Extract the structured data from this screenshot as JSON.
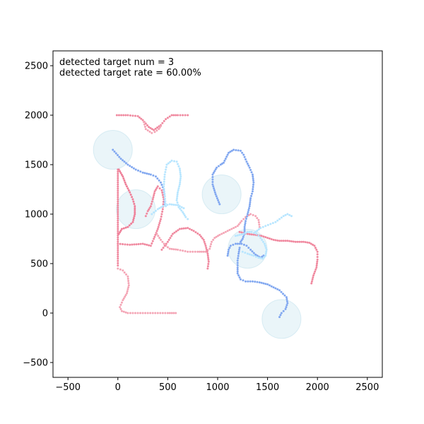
{
  "chart_data": {
    "type": "scatter",
    "title": "",
    "xlabel": "",
    "ylabel": "",
    "xlim": [
      -650,
      2650
    ],
    "ylim": [
      -650,
      2650
    ],
    "xticks": [
      -500,
      0,
      500,
      1000,
      1500,
      2000,
      2500
    ],
    "yticks": [
      -500,
      0,
      500,
      1000,
      1500,
      2000,
      2500
    ],
    "xtick_labels": [
      "−500",
      "0",
      "500",
      "1000",
      "1500",
      "2000",
      "2500"
    ],
    "ytick_labels": [
      "−500",
      "0",
      "500",
      "1000",
      "1500",
      "2000",
      "2500"
    ],
    "grid": false,
    "legend": "none",
    "annotations": [
      "detected target num = 3",
      "detected target rate = 60.00%"
    ],
    "targets": [
      {
        "x": -50,
        "y": 1650,
        "r": 195
      },
      {
        "x": 180,
        "y": 1050,
        "r": 195
      },
      {
        "x": 1040,
        "y": 1200,
        "r": 195
      },
      {
        "x": 1300,
        "y": 650,
        "r": 195
      },
      {
        "x": 1640,
        "y": -60,
        "r": 195
      }
    ],
    "target_color": "#add8e6",
    "series": [
      {
        "color": "#f08aa0",
        "points": [
          [
            -10,
            2000
          ],
          [
            100,
            2000
          ],
          [
            200,
            1990
          ],
          [
            250,
            1950
          ],
          [
            310,
            1880
          ],
          [
            360,
            1850
          ],
          [
            430,
            1900
          ],
          [
            480,
            1960
          ],
          [
            540,
            2000
          ],
          [
            600,
            2000
          ],
          [
            700,
            2000
          ]
        ]
      },
      {
        "color": "#f4a6b6",
        "points": [
          [
            260,
            1930
          ],
          [
            280,
            1860
          ],
          [
            340,
            1820
          ],
          [
            370,
            1830
          ],
          [
            410,
            1860
          ],
          [
            430,
            1890
          ]
        ]
      },
      {
        "color": "#f08aa0",
        "points": [
          [
            0,
            1450
          ],
          [
            0,
            1300
          ],
          [
            0,
            1150
          ],
          [
            0,
            1000
          ],
          [
            0,
            850
          ],
          [
            0,
            700
          ],
          [
            0,
            550
          ],
          [
            0,
            480
          ]
        ]
      },
      {
        "color": "#ee7f98",
        "points": [
          [
            10,
            1450
          ],
          [
            50,
            1380
          ],
          [
            80,
            1300
          ],
          [
            120,
            1220
          ],
          [
            150,
            1150
          ],
          [
            170,
            1080
          ],
          [
            170,
            1000
          ],
          [
            150,
            920
          ],
          [
            100,
            870
          ],
          [
            40,
            850
          ],
          [
            10,
            800
          ]
        ]
      },
      {
        "color": "#f08aa0",
        "points": [
          [
            0,
            700
          ],
          [
            120,
            690
          ],
          [
            250,
            700
          ],
          [
            330,
            680
          ],
          [
            360,
            750
          ],
          [
            400,
            850
          ],
          [
            430,
            950
          ],
          [
            450,
            1050
          ],
          [
            460,
            1150
          ],
          [
            440,
            1240
          ],
          [
            400,
            1280
          ],
          [
            370,
            1230
          ],
          [
            350,
            1150
          ],
          [
            330,
            1080
          ],
          [
            300,
            1030
          ],
          [
            280,
            980
          ]
        ]
      },
      {
        "color": "#f4a6b6",
        "points": [
          [
            390,
            800
          ],
          [
            430,
            740
          ],
          [
            480,
            680
          ],
          [
            520,
            650
          ],
          [
            600,
            640
          ],
          [
            700,
            620
          ],
          [
            800,
            620
          ],
          [
            880,
            620
          ],
          [
            920,
            650
          ],
          [
            940,
            720
          ],
          [
            970,
            760
          ],
          [
            1020,
            790
          ],
          [
            1080,
            820
          ],
          [
            1140,
            850
          ],
          [
            1200,
            880
          ],
          [
            1240,
            930
          ],
          [
            1280,
            970
          ],
          [
            1330,
            1000
          ],
          [
            1380,
            980
          ],
          [
            1410,
            940
          ],
          [
            1420,
            870
          ]
        ]
      },
      {
        "color": "#f08aa0",
        "points": [
          [
            440,
            640
          ],
          [
            500,
            720
          ],
          [
            550,
            800
          ],
          [
            620,
            850
          ],
          [
            700,
            860
          ],
          [
            760,
            830
          ],
          [
            820,
            790
          ],
          [
            860,
            740
          ],
          [
            880,
            680
          ],
          [
            900,
            600
          ],
          [
            910,
            520
          ],
          [
            900,
            450
          ]
        ]
      },
      {
        "color": "#f08aa0",
        "points": [
          [
            1220,
            820
          ],
          [
            1300,
            800
          ],
          [
            1380,
            790
          ],
          [
            1440,
            780
          ],
          [
            1500,
            760
          ],
          [
            1560,
            740
          ],
          [
            1620,
            730
          ],
          [
            1700,
            730
          ],
          [
            1780,
            720
          ],
          [
            1860,
            720
          ],
          [
            1920,
            710
          ],
          [
            1970,
            680
          ],
          [
            2000,
            620
          ],
          [
            2000,
            540
          ],
          [
            1990,
            460
          ],
          [
            1960,
            380
          ],
          [
            1940,
            300
          ]
        ]
      },
      {
        "color": "#f4a6b6",
        "points": [
          [
            0,
            450
          ],
          [
            50,
            430
          ],
          [
            100,
            370
          ],
          [
            110,
            280
          ],
          [
            90,
            200
          ],
          [
            50,
            130
          ],
          [
            20,
            60
          ],
          [
            40,
            20
          ],
          [
            100,
            0
          ],
          [
            200,
            0
          ],
          [
            300,
            0
          ],
          [
            400,
            0
          ],
          [
            500,
            0
          ],
          [
            580,
            0
          ]
        ]
      },
      {
        "color": "#82a8f0",
        "points": [
          [
            -50,
            1650
          ],
          [
            30,
            1560
          ],
          [
            100,
            1500
          ],
          [
            180,
            1450
          ],
          [
            250,
            1420
          ],
          [
            330,
            1400
          ],
          [
            380,
            1380
          ],
          [
            430,
            1320
          ],
          [
            460,
            1250
          ],
          [
            470,
            1180
          ],
          [
            470,
            1100
          ]
        ]
      },
      {
        "color": "#82a8f0",
        "points": [
          [
            1020,
            1100
          ],
          [
            980,
            1200
          ],
          [
            950,
            1300
          ],
          [
            950,
            1400
          ],
          [
            990,
            1470
          ],
          [
            1030,
            1500
          ],
          [
            1060,
            1520
          ],
          [
            1080,
            1560
          ],
          [
            1110,
            1620
          ],
          [
            1160,
            1650
          ],
          [
            1230,
            1640
          ],
          [
            1260,
            1600
          ],
          [
            1290,
            1530
          ],
          [
            1320,
            1470
          ],
          [
            1350,
            1400
          ],
          [
            1360,
            1320
          ],
          [
            1350,
            1230
          ],
          [
            1330,
            1160
          ],
          [
            1320,
            1080
          ],
          [
            1300,
            1000
          ],
          [
            1280,
            930
          ],
          [
            1270,
            870
          ],
          [
            1270,
            810
          ],
          [
            1250,
            750
          ],
          [
            1230,
            720
          ]
        ]
      },
      {
        "color": "#82a8f0",
        "points": [
          [
            1100,
            580
          ],
          [
            1110,
            640
          ],
          [
            1130,
            680
          ],
          [
            1180,
            700
          ],
          [
            1240,
            700
          ],
          [
            1290,
            680
          ],
          [
            1330,
            640
          ],
          [
            1380,
            590
          ],
          [
            1430,
            560
          ],
          [
            1460,
            580
          ]
        ]
      },
      {
        "color": "#82a8f0",
        "points": [
          [
            1220,
            660
          ],
          [
            1210,
            600
          ],
          [
            1200,
            530
          ],
          [
            1200,
            460
          ],
          [
            1200,
            400
          ],
          [
            1230,
            340
          ],
          [
            1280,
            320
          ],
          [
            1350,
            320
          ],
          [
            1420,
            310
          ],
          [
            1500,
            290
          ],
          [
            1560,
            260
          ],
          [
            1620,
            230
          ],
          [
            1690,
            160
          ],
          [
            1700,
            100
          ],
          [
            1680,
            40
          ],
          [
            1640,
            0
          ],
          [
            1620,
            -40
          ]
        ]
      },
      {
        "color": "#b8e6ff",
        "points": [
          [
            480,
            1080
          ],
          [
            470,
            1180
          ],
          [
            460,
            1280
          ],
          [
            470,
            1400
          ],
          [
            490,
            1500
          ],
          [
            540,
            1540
          ],
          [
            590,
            1530
          ],
          [
            620,
            1460
          ],
          [
            630,
            1380
          ],
          [
            620,
            1300
          ],
          [
            600,
            1220
          ],
          [
            590,
            1140
          ],
          [
            610,
            1070
          ],
          [
            650,
            1020
          ],
          [
            680,
            970
          ],
          [
            700,
            950
          ]
        ]
      },
      {
        "color": "#b8e6ff",
        "points": [
          [
            340,
            1000
          ],
          [
            400,
            1050
          ],
          [
            450,
            1080
          ],
          [
            520,
            1100
          ],
          [
            600,
            1090
          ],
          [
            660,
            1060
          ]
        ]
      },
      {
        "color": "#b8e6ff",
        "points": [
          [
            1250,
            620
          ],
          [
            1300,
            600
          ],
          [
            1360,
            580
          ],
          [
            1410,
            560
          ],
          [
            1450,
            550
          ],
          [
            1480,
            580
          ],
          [
            1490,
            640
          ],
          [
            1470,
            700
          ],
          [
            1430,
            760
          ],
          [
            1390,
            800
          ],
          [
            1340,
            820
          ],
          [
            1300,
            820
          ],
          [
            1260,
            800
          ],
          [
            1220,
            790
          ],
          [
            1180,
            780
          ]
        ]
      },
      {
        "color": "#b8e6ff",
        "points": [
          [
            1380,
            820
          ],
          [
            1430,
            860
          ],
          [
            1480,
            880
          ],
          [
            1530,
            900
          ],
          [
            1580,
            920
          ],
          [
            1620,
            950
          ],
          [
            1660,
            980
          ],
          [
            1700,
            1000
          ],
          [
            1740,
            980
          ]
        ]
      }
    ]
  }
}
